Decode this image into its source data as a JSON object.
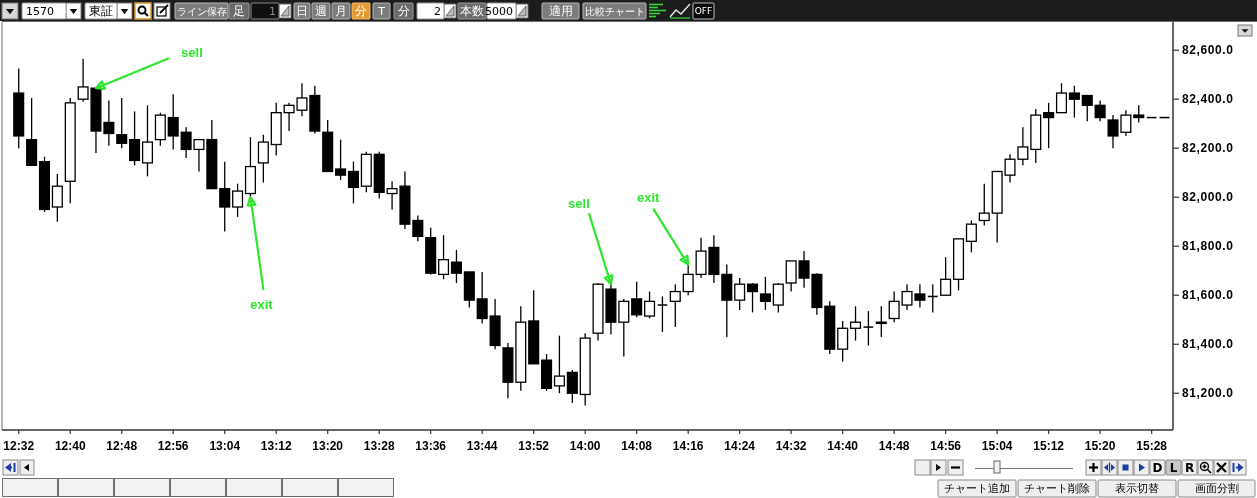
{
  "chart_data": {
    "type": "candlestick",
    "x": [
      12.5333,
      12.5667,
      12.6,
      12.6333,
      12.6667,
      12.7,
      12.7333,
      12.7667,
      12.8,
      12.8333,
      12.8667,
      12.9,
      12.9333,
      12.9667,
      13,
      13.0333,
      13.0667,
      13.1,
      13.1333,
      13.1667,
      13.2,
      13.2333,
      13.2667,
      13.3,
      13.3333,
      13.3667,
      13.4,
      13.4333,
      13.4667,
      13.5,
      13.5333,
      13.5667,
      13.6,
      13.6333,
      13.6667,
      13.7,
      13.7333,
      13.7667,
      13.8,
      13.8333,
      13.8667,
      13.9,
      13.9333,
      13.9667,
      14,
      14.0333,
      14.0667,
      14.1,
      14.1333,
      14.1667,
      14.2,
      14.2333,
      14.2667,
      14.3,
      14.3333,
      14.3667,
      14.4,
      14.4333,
      14.4667,
      14.5,
      14.5333,
      14.5667,
      14.6,
      14.6333,
      14.6667,
      14.7,
      14.7333,
      14.7667,
      14.8,
      14.8333,
      14.8667,
      14.9,
      14.9333,
      14.9667,
      15,
      15.0333,
      15.0667,
      15.1,
      15.1333,
      15.1667,
      15.2,
      15.2333,
      15.2667,
      15.3,
      15.3333,
      15.3667,
      15.4,
      15.4333,
      15.4667,
      15.5
    ],
    "ohlc": [
      [
        82425,
        82525,
        82200,
        82250
      ],
      [
        82235,
        82405,
        82130,
        82130
      ],
      [
        82145,
        82165,
        81940,
        81950
      ],
      [
        81960,
        82095,
        81900,
        82045
      ],
      [
        82065,
        82405,
        81975,
        82385
      ],
      [
        82400,
        82565,
        82390,
        82450
      ],
      [
        82445,
        82445,
        82180,
        82270
      ],
      [
        82305,
        82395,
        82210,
        82260
      ],
      [
        82255,
        82405,
        82200,
        82220
      ],
      [
        82235,
        82350,
        82130,
        82150
      ],
      [
        82140,
        82375,
        82085,
        82225
      ],
      [
        82235,
        82345,
        82210,
        82335
      ],
      [
        82325,
        82420,
        82195,
        82250
      ],
      [
        82265,
        82285,
        82160,
        82195
      ],
      [
        82195,
        82235,
        82105,
        82235
      ],
      [
        82235,
        82315,
        82035,
        82035
      ],
      [
        82035,
        82145,
        81860,
        81960
      ],
      [
        81960,
        82055,
        81920,
        82025
      ],
      [
        82015,
        82245,
        82000,
        82125
      ],
      [
        82140,
        82255,
        82060,
        82225
      ],
      [
        82215,
        82385,
        82170,
        82345
      ],
      [
        82345,
        82385,
        82270,
        82375
      ],
      [
        82355,
        82465,
        82330,
        82405
      ],
      [
        82415,
        82455,
        82260,
        82270
      ],
      [
        82265,
        82315,
        82105,
        82105
      ],
      [
        82115,
        82235,
        82070,
        82090
      ],
      [
        82105,
        82145,
        81975,
        82040
      ],
      [
        82045,
        82185,
        82020,
        82175
      ],
      [
        82175,
        82185,
        81995,
        82020
      ],
      [
        82015,
        82065,
        81950,
        82035
      ],
      [
        82045,
        82105,
        81870,
        81890
      ],
      [
        81905,
        81925,
        81820,
        81840
      ],
      [
        81835,
        81875,
        81685,
        81690
      ],
      [
        81685,
        81845,
        81665,
        81745
      ],
      [
        81735,
        81785,
        81650,
        81690
      ],
      [
        81695,
        81695,
        81550,
        81580
      ],
      [
        81585,
        81695,
        81485,
        81505
      ],
      [
        81515,
        81585,
        81380,
        81395
      ],
      [
        81385,
        81405,
        81180,
        81245
      ],
      [
        81245,
        81555,
        81210,
        81490
      ],
      [
        81495,
        81620,
        81320,
        81320
      ],
      [
        81335,
        81360,
        81210,
        81220
      ],
      [
        81230,
        81435,
        81200,
        81270
      ],
      [
        81285,
        81295,
        81160,
        81200
      ],
      [
        81195,
        81445,
        81150,
        81425
      ],
      [
        81445,
        81650,
        81415,
        81645
      ],
      [
        81625,
        81645,
        81440,
        81490
      ],
      [
        81490,
        81585,
        81350,
        81575
      ],
      [
        81585,
        81655,
        81510,
        81520
      ],
      [
        81515,
        81615,
        81505,
        81575
      ],
      [
        81560,
        81595,
        81450,
        81560
      ],
      [
        81575,
        81645,
        81470,
        81615
      ],
      [
        81615,
        81725,
        81600,
        81685
      ],
      [
        81685,
        81835,
        81670,
        81780
      ],
      [
        81795,
        81845,
        81650,
        81685
      ],
      [
        81685,
        81725,
        81430,
        81580
      ],
      [
        81580,
        81670,
        81540,
        81645
      ],
      [
        81645,
        81650,
        81530,
        81615
      ],
      [
        81605,
        81675,
        81540,
        81575
      ],
      [
        81560,
        81650,
        81530,
        81645
      ],
      [
        81650,
        81740,
        81615,
        81740
      ],
      [
        81740,
        81780,
        81630,
        81670
      ],
      [
        81685,
        81690,
        81520,
        81550
      ],
      [
        81555,
        81575,
        81360,
        81380
      ],
      [
        81380,
        81495,
        81330,
        81465
      ],
      [
        81465,
        81555,
        81415,
        81490
      ],
      [
        81470,
        81535,
        81395,
        81470
      ],
      [
        81485,
        81555,
        81430,
        81490
      ],
      [
        81505,
        81615,
        81490,
        81575
      ],
      [
        81560,
        81645,
        81540,
        81615
      ],
      [
        81605,
        81645,
        81550,
        81580
      ],
      [
        81595,
        81645,
        81530,
        81595
      ],
      [
        81600,
        81755,
        81600,
        81665
      ],
      [
        81665,
        81830,
        81620,
        81830
      ],
      [
        81820,
        81905,
        81775,
        81890
      ],
      [
        81905,
        82055,
        81885,
        81935
      ],
      [
        81935,
        82105,
        81815,
        82105
      ],
      [
        82090,
        82175,
        82060,
        82155
      ],
      [
        82155,
        82285,
        82130,
        82205
      ],
      [
        82195,
        82360,
        82140,
        82335
      ],
      [
        82345,
        82385,
        82200,
        82325
      ],
      [
        82345,
        82465,
        82345,
        82425
      ],
      [
        82425,
        82455,
        82325,
        82400
      ],
      [
        82415,
        82415,
        82310,
        82375
      ],
      [
        82375,
        82395,
        82310,
        82325
      ],
      [
        82315,
        82335,
        82200,
        82250
      ],
      [
        82265,
        82355,
        82250,
        82335
      ],
      [
        82335,
        82375,
        82305,
        82325
      ],
      [
        82325,
        82325,
        82325,
        82325
      ],
      [
        82325,
        82325,
        82325,
        82325
      ]
    ],
    "xlim": [
      12.49,
      15.522
    ],
    "xticks": [
      {
        "value": 12.5333,
        "label": "12:32"
      },
      {
        "value": 12.6667,
        "label": "12:40"
      },
      {
        "value": 12.8,
        "label": "12:48"
      },
      {
        "value": 12.9333,
        "label": "12:56"
      },
      {
        "value": 13.0667,
        "label": "13:04"
      },
      {
        "value": 13.2,
        "label": "13:12"
      },
      {
        "value": 13.3333,
        "label": "13:20"
      },
      {
        "value": 13.4667,
        "label": "13:28"
      },
      {
        "value": 13.6,
        "label": "13:36"
      },
      {
        "value": 13.7333,
        "label": "13:44"
      },
      {
        "value": 13.8667,
        "label": "13:52"
      },
      {
        "value": 14,
        "label": "14:00"
      },
      {
        "value": 14.1333,
        "label": "14:08"
      },
      {
        "value": 14.2667,
        "label": "14:16"
      },
      {
        "value": 14.4,
        "label": "14:24"
      },
      {
        "value": 14.5333,
        "label": "14:32"
      },
      {
        "value": 14.6667,
        "label": "14:40"
      },
      {
        "value": 14.8,
        "label": "14:48"
      },
      {
        "value": 14.9333,
        "label": "14:56"
      },
      {
        "value": 15.0667,
        "label": "15:04"
      },
      {
        "value": 15.2,
        "label": "15:12"
      },
      {
        "value": 15.3333,
        "label": "15:20"
      },
      {
        "value": 15.4667,
        "label": "15:28"
      }
    ],
    "ylim": [
      81050,
      82715
    ],
    "yticks": [
      {
        "value": 81200,
        "label": "81,200.0"
      },
      {
        "value": 81400,
        "label": "81,400.0"
      },
      {
        "value": 81600,
        "label": "81,600.0"
      },
      {
        "value": 81800,
        "label": "81,800.0"
      },
      {
        "value": 82000,
        "label": "82,000.0"
      },
      {
        "value": 82200,
        "label": "82,200.0"
      },
      {
        "value": 82400,
        "label": "82,400.0"
      },
      {
        "value": 82600,
        "label": "82,600.0"
      }
    ],
    "annotations": [
      {
        "text": "sell",
        "x": 12.7333,
        "y": 82445
      },
      {
        "text": "exit",
        "x": 13.1333,
        "y": 82000
      },
      {
        "text": "sell",
        "x": 14.0667,
        "y": 81645
      },
      {
        "text": "exit",
        "x": 14.2667,
        "y": 81725
      },
      "1570",
      "東証",
      "ライン保存",
      "足",
      "1",
      "日",
      "週",
      "月",
      "分",
      "T",
      "分",
      "2",
      "本数",
      "5000",
      "適用",
      "比較チャート",
      "OFF",
      "D",
      "L",
      "R",
      "チャート追加",
      "チャート削除",
      "表示切替",
      "画面分割"
    ]
  }
}
